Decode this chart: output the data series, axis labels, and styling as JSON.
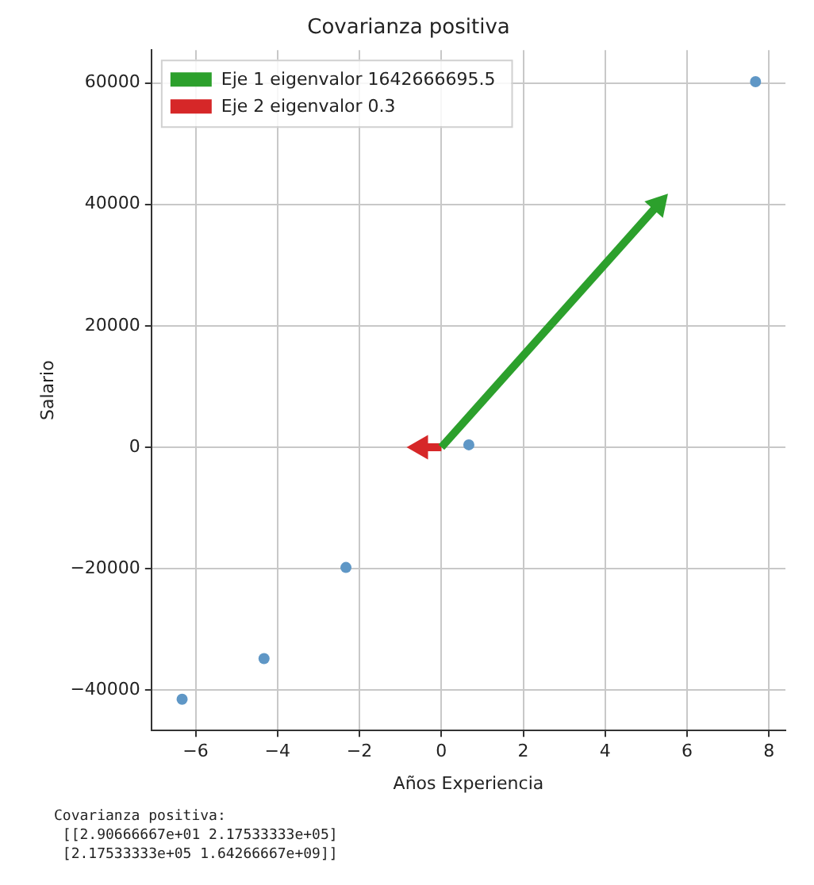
{
  "chart_data": {
    "type": "scatter",
    "title": "Covarianza positiva",
    "xlabel": "Años Experiencia",
    "ylabel": "Salario",
    "xlim": [
      -7.08,
      8.4
    ],
    "ylim": [
      -46650,
      65400
    ],
    "xticks": [
      {
        "value": -6,
        "label": "−6"
      },
      {
        "value": -4,
        "label": "−4"
      },
      {
        "value": -2,
        "label": "−2"
      },
      0,
      2,
      4,
      6,
      8
    ],
    "yticks": [
      {
        "value": -40000,
        "label": "−40000"
      },
      {
        "value": -20000,
        "label": "−20000"
      },
      0,
      20000,
      40000,
      60000
    ],
    "grid": true,
    "legend": "top left",
    "series": [
      {
        "marker": "circle",
        "color": "#5f97c6",
        "x": [
          -6.33,
          -4.33,
          -2.33,
          0.67,
          7.67
        ],
        "values": [
          -41500,
          -34800,
          -19800,
          400,
          60200
        ]
      },
      {
        "type": "line",
        "name": "Eje 1 eigenvalor 1642666695.5",
        "color": "#2ca02c",
        "marker": "triangle",
        "x": [
          0,
          5.3
        ],
        "values": [
          0,
          40000
        ]
      },
      {
        "type": "line",
        "name": "Eje 2 eigenvalor 0.3",
        "color": "#d62728",
        "marker": "triangle",
        "x": [
          0,
          -0.5
        ],
        "values": [
          0,
          0
        ]
      }
    ],
    "annotations": [
      "Covarianza positiva:",
      " [[2.90666667e+01 2.17533333e+05]",
      " [2.17533333e+05 1.64266667e+09]]"
    ]
  }
}
